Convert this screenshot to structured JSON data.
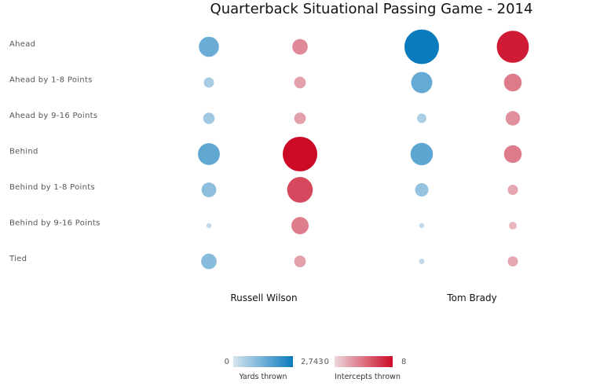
{
  "chart_data": {
    "type": "bubble-matrix",
    "title": "Quarterback Situational Passing Game - 2014",
    "rows": [
      "Ahead",
      "Ahead by 1-8 Points",
      "Ahead by 9-16 Points",
      "Behind",
      "Behind by 1-8 Points",
      "Behind by 9-16 Points",
      "Tied"
    ],
    "players": [
      "Russell Wilson",
      "Tom Brady"
    ],
    "series": [
      {
        "player": "Russell Wilson",
        "yards": [
          930,
          240,
          300,
          1100,
          500,
          60,
          550
        ],
        "intercepts": [
          1.6,
          0.9,
          0.9,
          8,
          4.4,
          2.0,
          0.9
        ]
      },
      {
        "player": "Tom Brady",
        "yards": [
          2743,
          1030,
          200,
          1150,
          410,
          60,
          70
        ],
        "intercepts": [
          6.9,
          2.1,
          1.4,
          2.1,
          0.7,
          0.4,
          0.7
        ]
      }
    ],
    "legend": {
      "yards": {
        "min": "0",
        "max": "2,743",
        "label": "Yards thrown",
        "color_low": "#d6e4ef",
        "color_high": "#0a7bbd"
      },
      "intercepts": {
        "min": "0",
        "max": "8",
        "label": "Intercepts thrown",
        "color_low": "#ecd7dc",
        "color_high": "#cc0a26"
      }
    }
  }
}
